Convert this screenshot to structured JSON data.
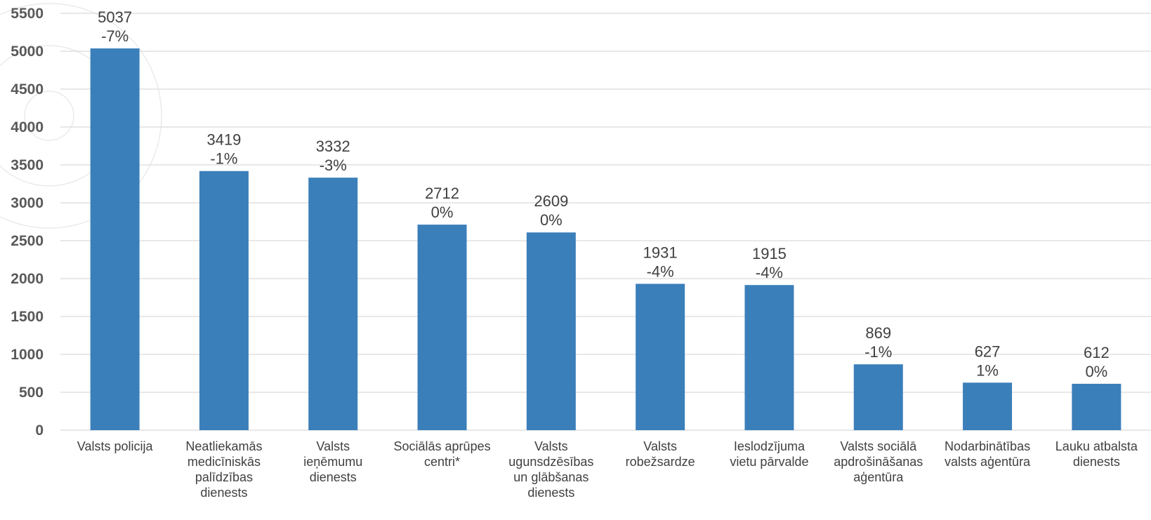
{
  "chart_data": {
    "type": "bar",
    "title": "",
    "xlabel": "",
    "ylabel": "",
    "ylim": [
      0,
      5500
    ],
    "yticks": [
      0,
      500,
      1000,
      1500,
      2000,
      2500,
      3000,
      3500,
      4000,
      4500,
      5000,
      5500
    ],
    "grid": true,
    "legend": "none",
    "bar_color": "#3b7fba",
    "categories": [
      [
        "Valsts policija"
      ],
      [
        "Neatliekamās",
        "medicīniskās",
        "palīdzības",
        "dienests"
      ],
      [
        "Valsts",
        "ieņēmumu",
        "dienests"
      ],
      [
        "Sociālās aprūpes",
        "centri*"
      ],
      [
        "Valsts",
        "ugunsdzēsības",
        "un glābšanas",
        "dienests"
      ],
      [
        "Valsts",
        "robežsardze"
      ],
      [
        "Ieslodzījuma",
        "vietu pārvalde"
      ],
      [
        "Valsts sociālā",
        "apdrošināšanas",
        "aģentūra"
      ],
      [
        "Nodarbinātības",
        "valsts aģentūra"
      ],
      [
        "Lauku atbalsta",
        "dienests"
      ]
    ],
    "values": [
      5037,
      3419,
      3332,
      2712,
      2609,
      1931,
      1915,
      869,
      627,
      612
    ],
    "change_labels": [
      "-7%",
      "-1%",
      "-3%",
      "0%",
      "0%",
      "-4%",
      "-4%",
      "-1%",
      "1%",
      "0%"
    ]
  }
}
